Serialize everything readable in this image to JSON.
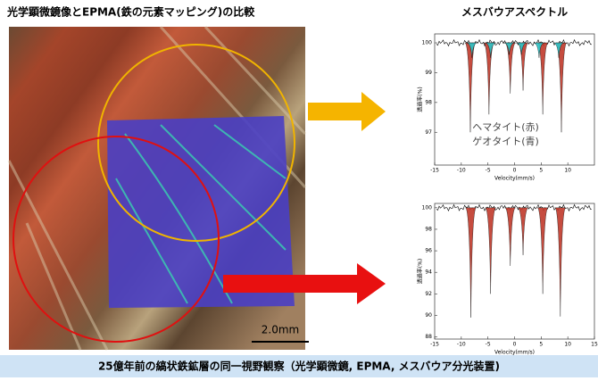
{
  "header": {
    "title": "光学顕微鏡像とEPMA(鉄の元素マッピング)の比較"
  },
  "photo": {
    "scale_label": "2.0mm"
  },
  "caption": "25億年前の縞状鉄鉱層の同一視野観察（光学顕微鏡, EPMA, メスバウア分光装置)",
  "chart_data": [
    {
      "type": "spectrum",
      "title": "メスバウアスペクトル",
      "x_label": "Velocity(mm/s)",
      "y_label": "透過率(%)",
      "xlim": [
        -15,
        15
      ],
      "xticks": [
        -15,
        -10,
        -5,
        0,
        5,
        10
      ],
      "ylim": [
        95.9,
        100.3
      ],
      "yticks": [
        100,
        99,
        98,
        97
      ],
      "series": [
        {
          "name": "ヘマタイト(赤)",
          "color": "#c0392b",
          "x": [
            -8.3,
            -4.8,
            -0.8,
            1.6,
            5.3,
            8.8
          ],
          "values": [
            97.0,
            97.6,
            98.3,
            98.4,
            97.6,
            97.0
          ]
        },
        {
          "name": "ゲオタイト(青)",
          "color": "#2bc6c9",
          "x": [
            -8.0,
            -4.5,
            -1.0,
            1.3,
            4.6,
            8.3
          ],
          "values": [
            99.5,
            99.5,
            99.6,
            99.6,
            99.5,
            99.5
          ]
        }
      ]
    },
    {
      "type": "spectrum",
      "x_label": "Velocity(mm/s)",
      "y_label": "透過率(%)",
      "xlim": [
        -15,
        15
      ],
      "xticks": [
        -15,
        -10,
        -5,
        0,
        5,
        10,
        15
      ],
      "ylim": [
        87.8,
        100.4
      ],
      "yticks": [
        100,
        98,
        96,
        94,
        92,
        90,
        88
      ],
      "series": [
        {
          "color": "#c0392b",
          "x": [
            -8.2,
            -4.5,
            -0.8,
            1.6,
            5.3,
            8.6
          ],
          "values": [
            89.8,
            92.0,
            94.6,
            95.6,
            92.0,
            89.9
          ]
        }
      ]
    }
  ]
}
